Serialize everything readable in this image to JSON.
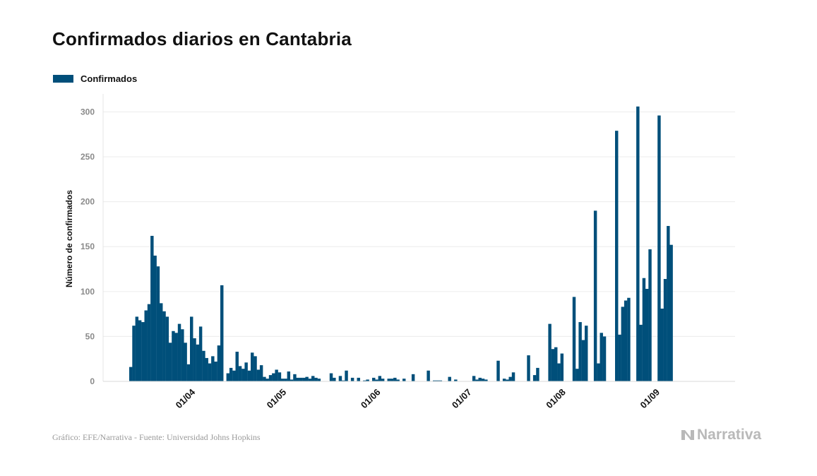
{
  "title": "Confirmados diarios en Cantabria",
  "legend": {
    "label": "Confirmados",
    "color": "#004f7a"
  },
  "source": "Gráfico: EFE/Narrativa - Fuente: Universidad Johns Hopkins",
  "brand": "Narrativa",
  "chart_data": {
    "type": "bar",
    "title": "Confirmados diarios en Cantabria",
    "xlabel": "",
    "ylabel": "Número de confirmados",
    "ylim": [
      0,
      320
    ],
    "yticks": [
      0,
      50,
      100,
      150,
      200,
      250,
      300
    ],
    "grid": true,
    "legend_position": "top-left",
    "series_name": "Confirmados",
    "color": "#004f7a",
    "start_date": "2020-03-12",
    "xticks": [
      {
        "label": "01/04",
        "index": 20
      },
      {
        "label": "01/05",
        "index": 50
      },
      {
        "label": "01/06",
        "index": 81
      },
      {
        "label": "01/07",
        "index": 111
      },
      {
        "label": "01/08",
        "index": 142
      },
      {
        "label": "01/09",
        "index": 173
      }
    ],
    "values": [
      16,
      62,
      72,
      68,
      66,
      79,
      86,
      162,
      140,
      128,
      87,
      78,
      72,
      43,
      56,
      54,
      64,
      58,
      43,
      19,
      72,
      48,
      41,
      61,
      34,
      26,
      20,
      28,
      22,
      40,
      107,
      0,
      9,
      15,
      12,
      33,
      17,
      14,
      21,
      12,
      32,
      28,
      13,
      18,
      5,
      3,
      7,
      9,
      13,
      10,
      3,
      3,
      11,
      2,
      8,
      4,
      4,
      4,
      5,
      3,
      6,
      4,
      3,
      0,
      0,
      0,
      9,
      4,
      0,
      6,
      1,
      12,
      0,
      4,
      0,
      4,
      0,
      1,
      2,
      0,
      4,
      2,
      6,
      3,
      0,
      3,
      3,
      4,
      2,
      0,
      3,
      0,
      0,
      8,
      0,
      0,
      0,
      0,
      12,
      0,
      1,
      1,
      1,
      0,
      0,
      5,
      0,
      2,
      0,
      0,
      0,
      0,
      0,
      6,
      2,
      4,
      3,
      2,
      0,
      0,
      0,
      23,
      0,
      3,
      2,
      5,
      10,
      0,
      0,
      0,
      0,
      29,
      0,
      7,
      15,
      0,
      0,
      0,
      64,
      36,
      38,
      20,
      31,
      0,
      0,
      0,
      94,
      14,
      66,
      46,
      62,
      0,
      0,
      190,
      20,
      54,
      50,
      0,
      0,
      0,
      279,
      52,
      83,
      90,
      93,
      0,
      0,
      306,
      63,
      115,
      103,
      147,
      0,
      0,
      296,
      81,
      114,
      173,
      152,
      0
    ]
  }
}
